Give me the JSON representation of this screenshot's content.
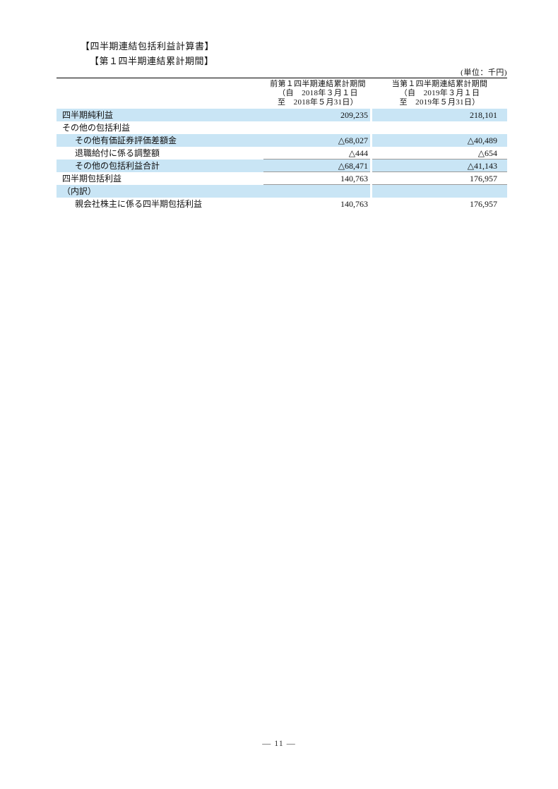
{
  "page": {
    "title": "【四半期連結包括利益計算書】",
    "subtitle": "【第１四半期連結累計期間】",
    "unit_label": "(単位：千円)",
    "page_number": "— 11 —"
  },
  "table": {
    "colors": {
      "row_shade": "#c9e5f5",
      "top_border": "#000000",
      "amount_underline": "#9a9a9a"
    },
    "columns": [
      {
        "line1": "前第１四半期連結累計期間",
        "line2": "（自　2018年３月１日",
        "line3": "至　2018年５月31日）"
      },
      {
        "line1": "当第１四半期連結累計期間",
        "line2": "（自　2019年３月１日",
        "line3": "至　2019年５月31日）"
      }
    ],
    "rows": [
      {
        "label": "四半期純利益",
        "indent": 0,
        "prev": "209,235",
        "curr": "218,101",
        "shaded": true,
        "underline": false
      },
      {
        "label": "その他の包括利益",
        "indent": 0,
        "prev": "",
        "curr": "",
        "shaded": false,
        "underline": false
      },
      {
        "label": "その他有価証券評価差額金",
        "indent": 1,
        "prev": "△68,027",
        "curr": "△40,489",
        "shaded": true,
        "underline": false
      },
      {
        "label": "退職給付に係る調整額",
        "indent": 1,
        "prev": "△444",
        "curr": "△654",
        "shaded": false,
        "underline": true
      },
      {
        "label": "その他の包括利益合計",
        "indent": 1,
        "prev": "△68,471",
        "curr": "△41,143",
        "shaded": true,
        "underline": true
      },
      {
        "label": "四半期包括利益",
        "indent": 0,
        "prev": "140,763",
        "curr": "176,957",
        "shaded": false,
        "underline": true
      },
      {
        "label": "（内訳）",
        "indent": 0,
        "prev": "",
        "curr": "",
        "shaded": true,
        "underline": false
      },
      {
        "label": "親会社株主に係る四半期包括利益",
        "indent": 1,
        "prev": "140,763",
        "curr": "176,957",
        "shaded": false,
        "underline": false
      }
    ]
  }
}
